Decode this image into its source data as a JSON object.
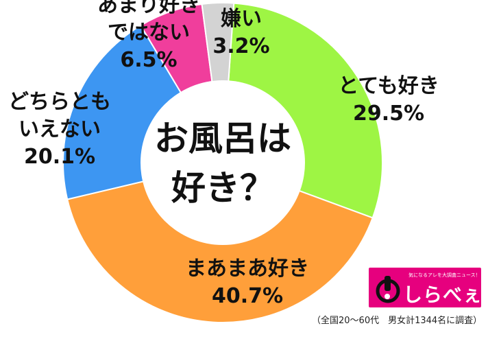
{
  "chart_data": {
    "type": "pie",
    "variant": "donut",
    "title_lines": [
      "お風呂は",
      "好き？"
    ],
    "slices": [
      {
        "label_lines": [
          "とても好き"
        ],
        "value": 29.5,
        "value_text": "29.5%",
        "color": "#9ef544"
      },
      {
        "label_lines": [
          "まあまあ好き"
        ],
        "value": 40.7,
        "value_text": "40.7%",
        "color": "#ff9f3a"
      },
      {
        "label_lines": [
          "どちらとも",
          "いえない"
        ],
        "value": 20.1,
        "value_text": "20.1%",
        "color": "#3d96f2"
      },
      {
        "label_lines": [
          "あまり好き",
          "ではない"
        ],
        "value": 6.5,
        "value_text": "6.5%",
        "color": "#f03e9c"
      },
      {
        "label_lines": [
          "嫌い"
        ],
        "value": 3.2,
        "value_text": "3.2%",
        "color": "#d3d3d3"
      }
    ]
  },
  "logo": {
    "name": "しらべぇ",
    "tagline": "気になるアレを大調査ニュース！"
  },
  "footnote": "（全国20～60代　男女計1344名に調査）"
}
